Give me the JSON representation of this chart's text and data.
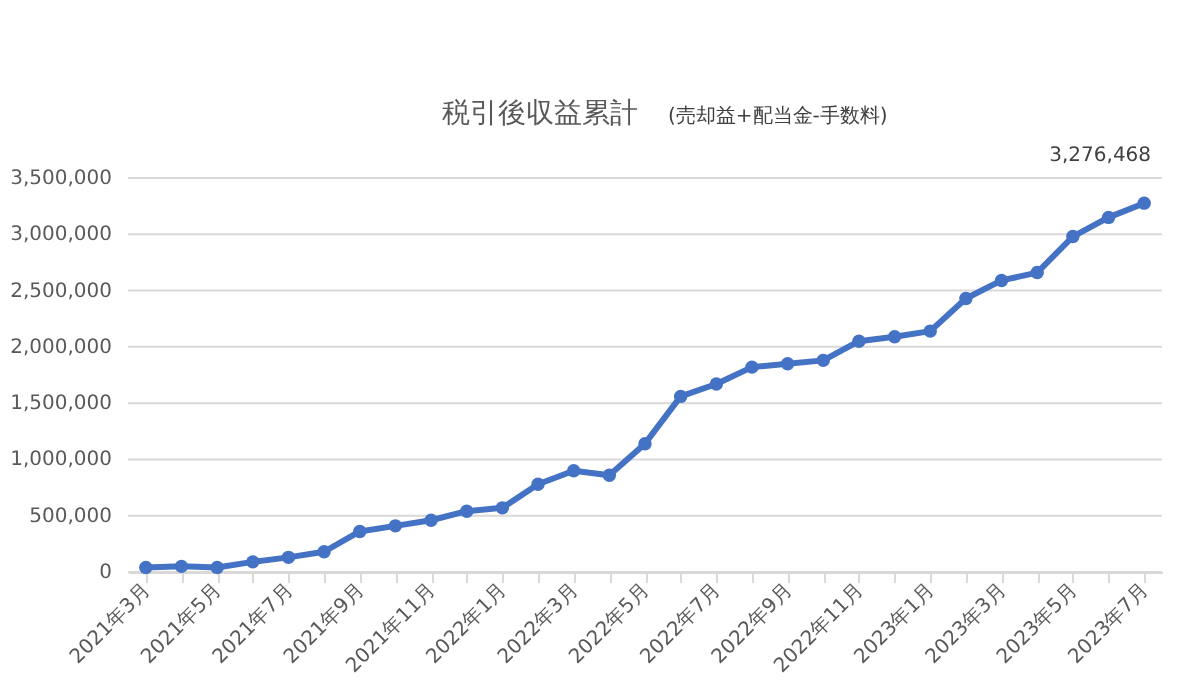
{
  "chart_data": {
    "type": "line",
    "title": "税引後収益累計",
    "subtitle": "(売却益+配当金-手数料)",
    "categories": [
      "2021年3月",
      null,
      "2021年5月",
      null,
      "2021年7月",
      null,
      "2021年9月",
      null,
      "2021年11月",
      null,
      "2022年1月",
      null,
      "2022年3月",
      null,
      "2022年5月",
      null,
      "2022年7月",
      null,
      "2022年9月",
      null,
      "2022年11月",
      null,
      "2023年1月",
      null,
      "2023年3月",
      null,
      "2023年5月",
      null,
      "2023年7月"
    ],
    "series": [
      {
        "color": "#4472c4",
        "values": [
          40000,
          50000,
          40000,
          90000,
          130000,
          180000,
          360000,
          410000,
          460000,
          540000,
          570000,
          780000,
          900000,
          860000,
          1140000,
          1560000,
          1670000,
          1820000,
          1850000,
          1880000,
          2050000,
          2090000,
          2140000,
          2430000,
          2590000,
          2660000,
          2980000,
          3150000,
          3276468
        ]
      }
    ],
    "ylim": [
      0,
      3500000
    ],
    "yticks": [
      {
        "value": 0,
        "label": "0"
      },
      {
        "value": 500000,
        "label": "500,000"
      },
      {
        "value": 1000000,
        "label": "1,000,000"
      },
      {
        "value": 1500000,
        "label": "1,500,000"
      },
      {
        "value": 2000000,
        "label": "2,000,000"
      },
      {
        "value": 2500000,
        "label": "2,500,000"
      },
      {
        "value": 3000000,
        "label": "3,000,000"
      },
      {
        "value": 3500000,
        "label": "3,500,000"
      }
    ],
    "grid": "y",
    "marker": "circle",
    "line_style": "solid",
    "annotations": [
      {
        "text": "3,276,468",
        "x": "2023年7月",
        "y": 3276468
      }
    ]
  }
}
